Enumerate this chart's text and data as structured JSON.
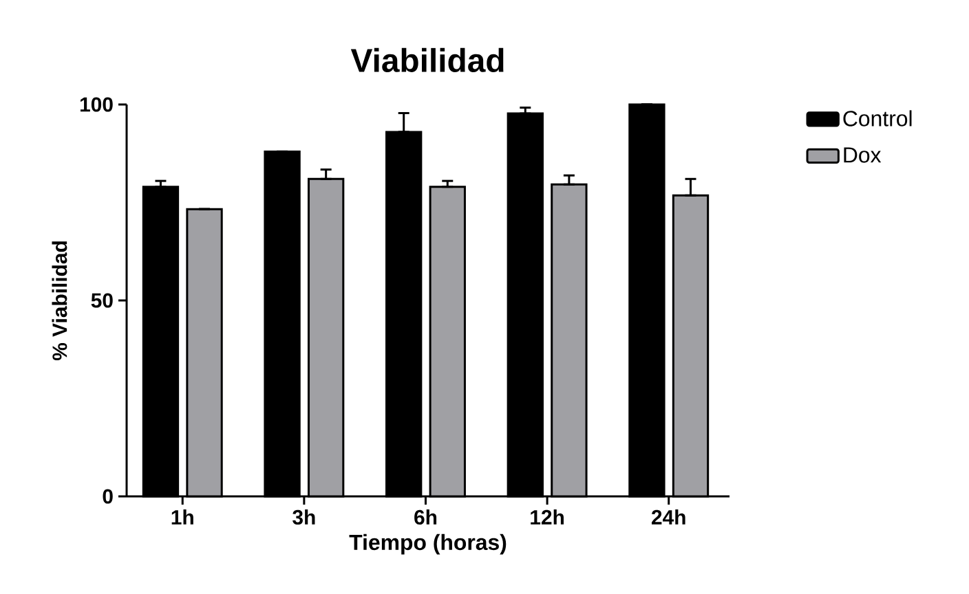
{
  "chart_data": {
    "type": "bar",
    "title": "Viabilidad",
    "xlabel": "Tiempo (horas)",
    "ylabel": "% Viabilidad",
    "categories": [
      "1h",
      "3h",
      "6h",
      "12h",
      "24h"
    ],
    "series": [
      {
        "name": "Control",
        "color": "#000000",
        "values": [
          79,
          88,
          93,
          97.7,
          100
        ],
        "errors": [
          [
            79,
            80.5
          ],
          null,
          [
            93,
            97.8
          ],
          [
            97.7,
            99.2
          ],
          null
        ]
      },
      {
        "name": "Dox",
        "color": "#a0a0a4",
        "values": [
          73.3,
          81,
          79,
          79.6,
          76.8
        ],
        "errors": [
          null,
          [
            81,
            83.4
          ],
          [
            79,
            80.5
          ],
          [
            79.6,
            81.9
          ],
          [
            76.8,
            81
          ]
        ]
      }
    ],
    "ylim": [
      0,
      100
    ],
    "yticks": [
      0,
      50,
      100
    ],
    "legend": "right"
  }
}
